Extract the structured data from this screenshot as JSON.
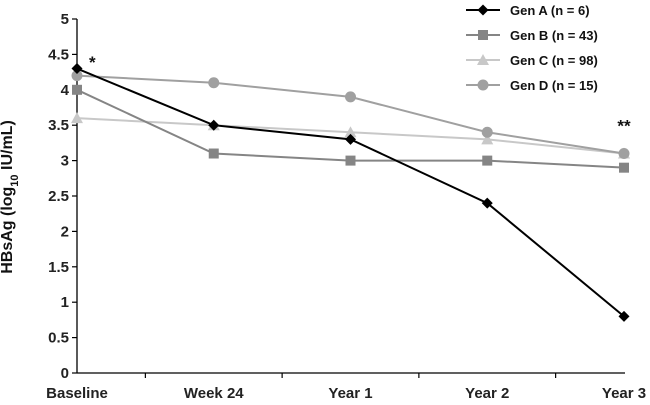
{
  "chart_data": {
    "type": "line",
    "categories": [
      "Baseline",
      "Week 24",
      "Year 1",
      "Year 2",
      "Year 3"
    ],
    "ylabel": {
      "main": "HBsAg (log",
      "sub": "10",
      "unit": " IU/mL)"
    },
    "ylim": [
      0,
      5
    ],
    "yticks": [
      "0",
      "0.5",
      "1",
      "1.5",
      "2",
      "2.5",
      "3",
      "3.5",
      "4",
      "4.5",
      "5"
    ],
    "grid": false,
    "legend_position": "top-right",
    "series": [
      {
        "name": "Gen A (n = 6)",
        "values": [
          4.3,
          3.5,
          3.3,
          2.4,
          0.8
        ],
        "color": "#000000",
        "marker": "diamond"
      },
      {
        "name": "Gen B (n = 43)",
        "values": [
          4.0,
          3.1,
          3.0,
          3.0,
          2.9
        ],
        "color": "#858585",
        "marker": "square"
      },
      {
        "name": "Gen C (n = 98)",
        "values": [
          3.6,
          3.5,
          3.4,
          3.3,
          3.1
        ],
        "color": "#c8c8c8",
        "marker": "triangle"
      },
      {
        "name": "Gen D (n = 15)",
        "values": [
          4.2,
          4.1,
          3.9,
          3.4,
          3.1
        ],
        "color": "#a0a0a0",
        "marker": "circle"
      }
    ],
    "annotations": [
      {
        "text": "*",
        "category": "Baseline",
        "y": 4.45
      },
      {
        "text": "**",
        "category": "Year 3",
        "y": 3.55
      }
    ]
  }
}
